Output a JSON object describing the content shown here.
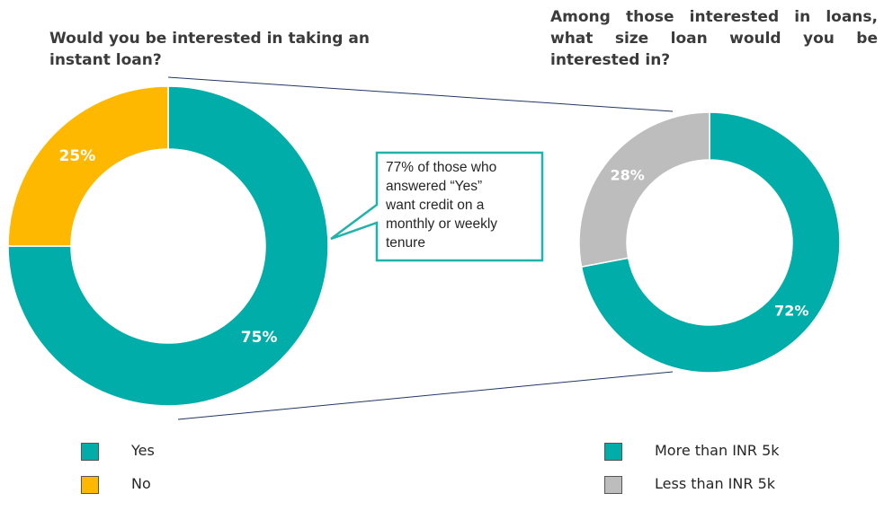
{
  "colors": {
    "teal": "#00ADA8",
    "amber": "#FFB800",
    "grey": "#BDBDBD",
    "callout_border": "#1FB3AA",
    "connector": "#1F3864"
  },
  "chart_data": [
    {
      "type": "pie",
      "variant": "donut",
      "title": "Would you be interested in taking an instant loan?",
      "categories": [
        "Yes",
        "No"
      ],
      "values": [
        75,
        25
      ],
      "labels": [
        "75%",
        "25%"
      ],
      "legend_position": "bottom-left"
    },
    {
      "type": "pie",
      "variant": "donut",
      "title": "Among those interested in loans, what size loan would you be interested in?",
      "categories": [
        "More than INR 5k",
        "Less than INR 5k"
      ],
      "values": [
        72,
        28
      ],
      "labels": [
        "72%",
        "28%"
      ],
      "legend_position": "bottom-right"
    }
  ],
  "callout": {
    "lines": [
      "77% of those who",
      "answered “Yes”",
      "want credit on a",
      "monthly or weekly",
      "tenure"
    ]
  }
}
